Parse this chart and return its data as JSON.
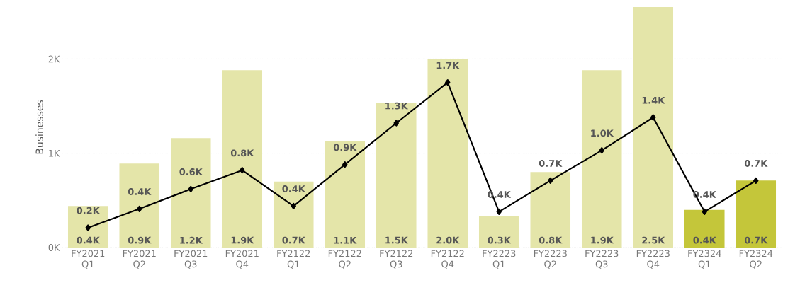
{
  "chart_data": {
    "type": "bar",
    "ylabel": "Businesses",
    "categories": [
      "FY2021 Q1",
      "FY2021 Q2",
      "FY2021 Q3",
      "FY2021 Q4",
      "FY2122 Q1",
      "FY2122 Q2",
      "FY2122 Q3",
      "FY2122 Q4",
      "FY2223 Q1",
      "FY2223 Q2",
      "FY2223 Q3",
      "FY2223 Q4",
      "FY2324 Q1",
      "FY2324 Q2"
    ],
    "series": [
      {
        "colors": [
          "#e4e5a9",
          "#e4e5a9",
          "#e4e5a9",
          "#e4e5a9",
          "#e4e5a9",
          "#e4e5a9",
          "#e4e5a9",
          "#e4e5a9",
          "#e4e5a9",
          "#e4e5a9",
          "#e4e5a9",
          "#e4e5a9",
          "#c4c63a",
          "#c4c63a"
        ],
        "values": [
          440,
          890,
          1160,
          1880,
          700,
          1130,
          1530,
          2000,
          330,
          800,
          1880,
          2550,
          400,
          710
        ],
        "value_labels": [
          "0.4K",
          "0.9K",
          "1.2K",
          "1.9K",
          "0.7K",
          "1.1K",
          "1.5K",
          "2.0K",
          "0.3K",
          "0.8K",
          "1.9K",
          "2.5K",
          "0.4K",
          "0.7K"
        ]
      },
      {
        "type": "line",
        "color": "#000000",
        "values": [
          210,
          410,
          620,
          820,
          440,
          880,
          1320,
          1750,
          380,
          710,
          1030,
          1380,
          380,
          710
        ],
        "value_labels": [
          "0.2K",
          "0.4K",
          "0.6K",
          "0.8K",
          "0.4K",
          "0.9K",
          "1.3K",
          "1.7K",
          "0.4K",
          "0.7K",
          "1.0K",
          "1.4K",
          "0.4K",
          "0.7K"
        ]
      }
    ],
    "ylim": [
      0,
      2550
    ],
    "yticks": [
      {
        "value": 0,
        "label": "0K"
      },
      {
        "value": 1000,
        "label": "1K"
      },
      {
        "value": 2000,
        "label": "2K"
      }
    ],
    "grid": "y",
    "marker": "diamond",
    "line_style": "solid"
  }
}
